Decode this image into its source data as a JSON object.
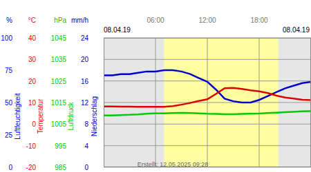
{
  "chart_data": {
    "type": "line",
    "date_left": "08.04.19",
    "date_right": "08.04.19",
    "credit": "Erstellt: 12.05.2025 09:28",
    "xlim": [
      0,
      24
    ],
    "xticks": [
      {
        "value": 6,
        "label": "06:00"
      },
      {
        "value": 12,
        "label": "12:00"
      },
      {
        "value": 18,
        "label": "18:00"
      }
    ],
    "daylight": [
      7.0,
      20.2
    ],
    "grid": true,
    "axes": [
      {
        "unit": "%",
        "label": "Luftfeuchtigkeit",
        "color": "#0000ff",
        "ylim": [
          0,
          100
        ],
        "yticks": [
          0,
          25,
          50,
          75,
          100
        ]
      },
      {
        "unit": "°C",
        "label": "Temperatur",
        "color": "#ff0000",
        "ylim": [
          -20,
          40
        ],
        "yticks": [
          -20,
          -10,
          0,
          10,
          20,
          30,
          40
        ]
      },
      {
        "unit": "hPa",
        "label": "Luftdruck",
        "color": "#00cc00",
        "ylim": [
          985,
          1045
        ],
        "yticks": [
          985,
          995,
          1005,
          1015,
          1025,
          1035,
          1045
        ]
      },
      {
        "unit": "mm/h",
        "label": "Niederschlag",
        "color": "#0000cc",
        "ylim": [
          0,
          24
        ],
        "yticks": [
          0,
          4,
          8,
          12,
          16,
          20,
          24
        ]
      }
    ],
    "x": [
      0,
      1,
      2,
      3,
      4,
      5,
      6,
      7,
      8,
      9,
      10,
      11,
      12,
      13,
      14,
      15,
      16,
      17,
      18,
      19,
      20,
      21,
      22,
      23,
      24
    ],
    "series": [
      {
        "name": "Luftfeuchtigkeit",
        "axis": "%",
        "color": "#0000cc",
        "values": [
          71,
          71,
          72,
          72,
          73,
          74,
          74,
          75,
          75,
          74,
          72,
          69,
          66,
          60,
          53,
          51,
          50,
          50,
          52,
          55,
          58,
          61,
          63,
          65,
          66
        ]
      },
      {
        "name": "Temperatur",
        "axis": "°C",
        "color": "#dd0000",
        "values": [
          8.2,
          8.2,
          8.1,
          8.1,
          8.0,
          8.0,
          8.0,
          8.0,
          8.3,
          9.0,
          9.8,
          10.7,
          11.5,
          14.0,
          16.6,
          16.8,
          16.3,
          15.7,
          15.2,
          14.4,
          13.2,
          12.3,
          11.8,
          11.3,
          11.1
        ]
      },
      {
        "name": "Luftdruck",
        "axis": "hPa",
        "color": "#00cc00",
        "values": [
          1009,
          1009,
          1009.2,
          1009.3,
          1009.5,
          1009.8,
          1010,
          1010,
          1010.1,
          1010.2,
          1010.1,
          1010,
          1009.8,
          1009.7,
          1009.6,
          1009.6,
          1009.7,
          1009.8,
          1009.9,
          1010.1,
          1010.3,
          1010.5,
          1010.7,
          1010.9,
          1011
        ]
      }
    ]
  }
}
